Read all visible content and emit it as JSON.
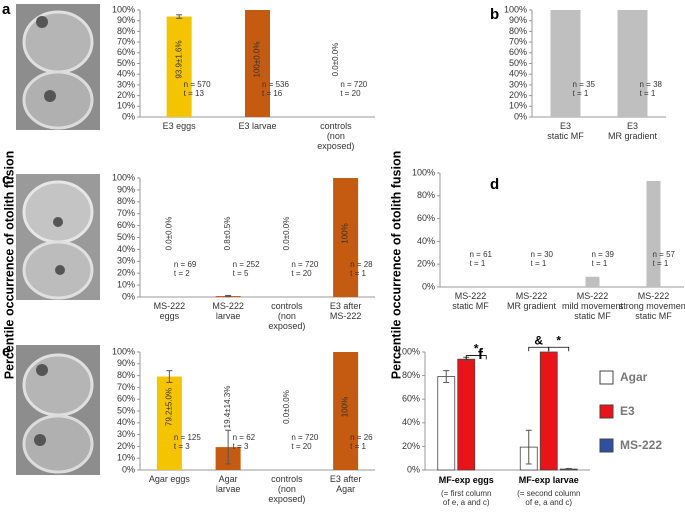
{
  "chart_data": [
    {
      "type": "bar",
      "label": "a",
      "categories": [
        "E3 eggs",
        "E3 larvae",
        "controls\n(non\nexposed)"
      ],
      "values": [
        93.9,
        100,
        0
      ],
      "errors": [
        1.6,
        0,
        0
      ],
      "value_labels": [
        "93.9±1.6%",
        "100±0.0%",
        "0.0±0.0%"
      ],
      "notes": [
        "n = 570\nt = 13",
        "n = 536\nt = 16",
        "n = 720\nt = 20"
      ],
      "colors": [
        "#f5c400",
        "#c55a11",
        "#c55a11"
      ],
      "ylim": [
        0,
        100
      ],
      "yticks": [
        {
          "value": 0,
          "label": "0%"
        },
        {
          "value": 10,
          "label": "10%"
        },
        {
          "value": 20,
          "label": "20%"
        },
        {
          "value": 30,
          "label": "30%"
        },
        {
          "value": 40,
          "label": "40%"
        },
        {
          "value": 50,
          "label": "50%"
        },
        {
          "value": 60,
          "label": "60%"
        },
        {
          "value": 70,
          "label": "70%"
        },
        {
          "value": 80,
          "label": "80%"
        },
        {
          "value": 90,
          "label": "90%"
        },
        {
          "value": 100,
          "label": "100%"
        }
      ]
    },
    {
      "type": "bar",
      "label": "b",
      "categories": [
        "E3\nstatic MF",
        "E3\nMR gradient"
      ],
      "values": [
        100,
        100
      ],
      "notes": [
        "n = 35\nt = 1",
        "n = 38\nt = 1"
      ],
      "colors": [
        "#bfbfbf",
        "#bfbfbf"
      ],
      "ylim": [
        0,
        100
      ],
      "yticks": [
        {
          "value": 0,
          "label": "0%"
        },
        {
          "value": 10,
          "label": "10%"
        },
        {
          "value": 20,
          "label": "20%"
        },
        {
          "value": 30,
          "label": "30%"
        },
        {
          "value": 40,
          "label": "40%"
        },
        {
          "value": 50,
          "label": "50%"
        },
        {
          "value": 60,
          "label": "60%"
        },
        {
          "value": 70,
          "label": "70%"
        },
        {
          "value": 80,
          "label": "80%"
        },
        {
          "value": 90,
          "label": "90%"
        },
        {
          "value": 100,
          "label": "100%"
        }
      ]
    },
    {
      "type": "bar",
      "label": "c",
      "ylabel": "Percentile occurrence of otolith fusion",
      "categories": [
        "MS-222\neggs",
        "MS-222\nlarvae",
        "controls\n(non\nexposed)",
        "E3 after\nMS-222"
      ],
      "values": [
        0,
        0.8,
        0,
        100
      ],
      "errors": [
        0,
        0.5,
        0,
        0
      ],
      "value_labels": [
        "0.0±0.0%",
        "0.8±0.5%",
        "0.0±0.0%",
        "100%"
      ],
      "notes": [
        "n = 69\nt = 2",
        "n = 252\nt = 5",
        "n = 720\nt = 20",
        "n = 28\nt = 1"
      ],
      "colors": [
        "#f5c400",
        "#c55a11",
        "#c55a11",
        "#c55a11"
      ],
      "ylim": [
        0,
        100
      ],
      "yticks": [
        {
          "value": 0,
          "label": "0%"
        },
        {
          "value": 10,
          "label": "10%"
        },
        {
          "value": 20,
          "label": "20%"
        },
        {
          "value": 30,
          "label": "30%"
        },
        {
          "value": 40,
          "label": "40%"
        },
        {
          "value": 50,
          "label": "50%"
        },
        {
          "value": 60,
          "label": "60%"
        },
        {
          "value": 70,
          "label": "70%"
        },
        {
          "value": 80,
          "label": "80%"
        },
        {
          "value": 90,
          "label": "90%"
        },
        {
          "value": 100,
          "label": "100%"
        }
      ]
    },
    {
      "type": "bar",
      "label": "d",
      "ylabel": "Percentile occurrence of otolith fusion",
      "categories": [
        "MS-222\nstatic MF",
        "MS-222\nMR gradient",
        "MS-222\nmild movement\nstatic MF",
        "MS-222\nstrong movement\nstatic MF"
      ],
      "values": [
        0,
        0,
        9,
        93
      ],
      "notes": [
        "n = 61\nt = 1",
        "n = 30\nt = 1",
        "n = 39\nt = 1",
        "n = 57\nt = 1"
      ],
      "colors": [
        "#bfbfbf",
        "#bfbfbf",
        "#bfbfbf",
        "#bfbfbf"
      ],
      "ylim": [
        0,
        100
      ],
      "yticks": [
        {
          "value": 0,
          "label": "0%"
        },
        {
          "value": 20,
          "label": "20%"
        },
        {
          "value": 40,
          "label": "40%"
        },
        {
          "value": 60,
          "label": "60%"
        },
        {
          "value": 80,
          "label": "80%"
        },
        {
          "value": 100,
          "label": "100%"
        }
      ]
    },
    {
      "type": "bar",
      "label": "e",
      "categories": [
        "Agar eggs",
        "Agar\nlarvae",
        "controls\n(non\nexposed)",
        "E3 after\nAgar"
      ],
      "values": [
        79.2,
        19.4,
        0,
        100
      ],
      "errors": [
        5.0,
        14.3,
        0,
        0
      ],
      "value_labels": [
        "79.2±5.0%",
        "19.4±14.3%",
        "0.0±0.0%",
        "100%"
      ],
      "notes": [
        "n = 125\nt = 3",
        "n = 62\nt = 3",
        "n = 720\nt = 20",
        "n = 26\nt = 1"
      ],
      "colors": [
        "#f5c400",
        "#c55a11",
        "#c55a11",
        "#c55a11"
      ],
      "ylim": [
        0,
        100
      ],
      "yticks": [
        {
          "value": 0,
          "label": "0%"
        },
        {
          "value": 10,
          "label": "10%"
        },
        {
          "value": 20,
          "label": "20%"
        },
        {
          "value": 30,
          "label": "30%"
        },
        {
          "value": 40,
          "label": "40%"
        },
        {
          "value": 50,
          "label": "50%"
        },
        {
          "value": 60,
          "label": "60%"
        },
        {
          "value": 70,
          "label": "70%"
        },
        {
          "value": 80,
          "label": "80%"
        },
        {
          "value": 90,
          "label": "90%"
        },
        {
          "value": 100,
          "label": "100%"
        }
      ]
    },
    {
      "type": "grouped_bar",
      "label": "f",
      "categories": [
        "MF-exp eggs",
        "MF-exp larvae"
      ],
      "category_notes": [
        "(= first column\nof e, a and c)",
        "(= second column\nof e, a and c)"
      ],
      "series": [
        {
          "name": "Agar",
          "color": "#ffffff",
          "values": [
            79.2,
            19.4
          ],
          "errors": [
            5.0,
            14.3
          ]
        },
        {
          "name": "E3",
          "color": "#e8141a",
          "values": [
            93.9,
            100
          ],
          "errors": [
            1.6,
            0
          ]
        },
        {
          "name": "MS-222",
          "color": "#2f4fa0",
          "values": [
            0,
            0.8
          ],
          "errors": [
            0,
            0.5
          ]
        }
      ],
      "annotations": [
        "*",
        "&",
        "*"
      ],
      "ylim": [
        0,
        100
      ],
      "yticks": [
        {
          "value": 0,
          "label": "0%"
        },
        {
          "value": 20,
          "label": "20%"
        },
        {
          "value": 40,
          "label": "40%"
        },
        {
          "value": 60,
          "label": "60%"
        },
        {
          "value": 80,
          "label": "80%"
        },
        {
          "value": 100,
          "label": "100%"
        }
      ]
    }
  ]
}
